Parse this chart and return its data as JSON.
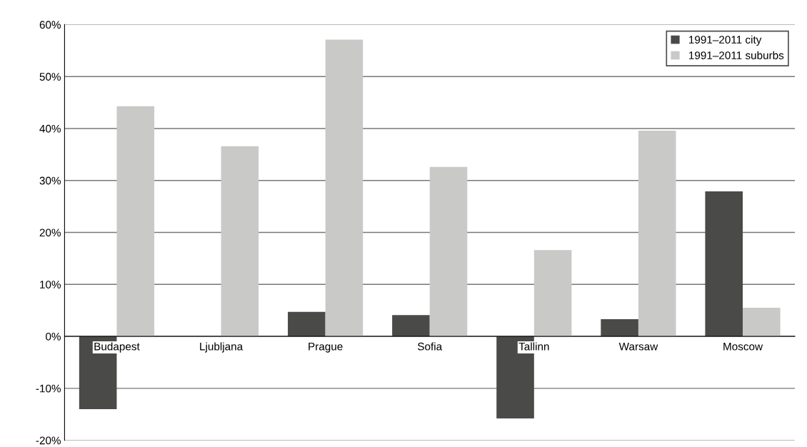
{
  "chart_data": {
    "type": "bar",
    "categories": [
      "Budapest",
      "Ljubljana",
      "Prague",
      "Sofia",
      "Tallinn",
      "Warsaw",
      "Moscow"
    ],
    "series": [
      {
        "name": "1991–2011 city",
        "color": "#4a4a48",
        "values": [
          -14,
          null,
          4.7,
          4.1,
          -15.8,
          3.3,
          27.9
        ]
      },
      {
        "name": "1991–2011 suburbs",
        "color": "#c9c9c7",
        "values": [
          44.3,
          36.6,
          57.1,
          32.6,
          16.6,
          39.6,
          5.5
        ]
      }
    ],
    "ylim": [
      -20,
      60
    ],
    "yticks": [
      {
        "value": -20,
        "label": "-20%"
      },
      {
        "value": -10,
        "label": "-10%"
      },
      {
        "value": 0,
        "label": "0%"
      },
      {
        "value": 10,
        "label": "10%"
      },
      {
        "value": 20,
        "label": "20%"
      },
      {
        "value": 30,
        "label": "30%"
      },
      {
        "value": 40,
        "label": "40%"
      },
      {
        "value": 50,
        "label": "50%"
      },
      {
        "value": 60,
        "label": "60%"
      }
    ],
    "grid": "y",
    "legend": "top right"
  }
}
